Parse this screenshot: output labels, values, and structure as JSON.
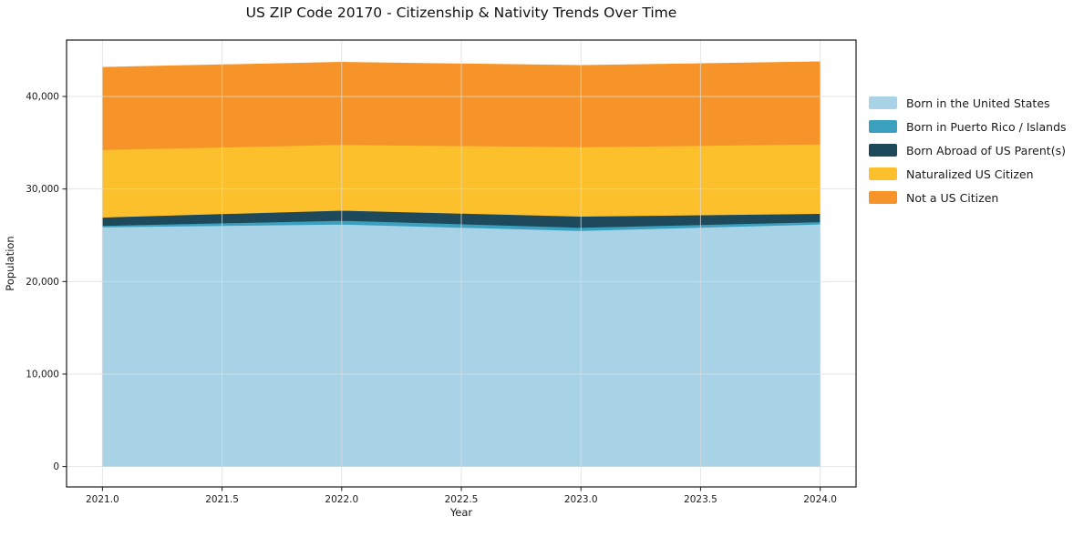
{
  "figure": {
    "title": "US ZIP Code 20170 - Citizenship & Nativity Trends Over Time"
  },
  "chart_data": {
    "type": "area",
    "stacked": true,
    "title": "US ZIP Code 20170 - Citizenship & Nativity Trends Over Time",
    "xlabel": "Year",
    "ylabel": "Population",
    "x": [
      2021,
      2022,
      2023,
      2024
    ],
    "series": [
      {
        "name": "Born in the United States",
        "color": "#A8D3E7",
        "values": [
          25900,
          26200,
          25500,
          26200
        ]
      },
      {
        "name": "Born in Puerto Rico / Islands",
        "color": "#3BA0BD",
        "values": [
          150,
          400,
          350,
          250
        ]
      },
      {
        "name": "Born Abroad of US Parent(s)",
        "color": "#1E495B",
        "values": [
          900,
          1100,
          1200,
          900
        ]
      },
      {
        "name": "Naturalized US Citizen",
        "color": "#FCC02C",
        "values": [
          7300,
          7100,
          7500,
          7500
        ]
      },
      {
        "name": "Not a US Citizen",
        "color": "#F79429",
        "values": [
          8900,
          8900,
          8800,
          8900
        ]
      }
    ],
    "totals": [
      43150,
      43700,
      43350,
      43750
    ],
    "xlim": [
      2020.85,
      2024.15
    ],
    "ylim": [
      -2200,
      46100
    ],
    "xticks": {
      "values": [
        2021,
        2021.5,
        2022,
        2022.5,
        2023,
        2023.5,
        2024
      ],
      "labels": [
        "2021.0",
        "2021.5",
        "2022.0",
        "2022.5",
        "2023.0",
        "2023.5",
        "2024.0"
      ]
    },
    "yticks": {
      "values": [
        0,
        10000,
        20000,
        30000,
        40000
      ],
      "labels": [
        "0",
        "10,000",
        "20,000",
        "30,000",
        "40,000"
      ]
    },
    "grid": true,
    "legend_position": "right-outside",
    "colors": {
      "grid": "#dcdcdc",
      "spine": "#1a1a1a",
      "text": "#1a1a1a",
      "background": "#ffffff"
    }
  }
}
